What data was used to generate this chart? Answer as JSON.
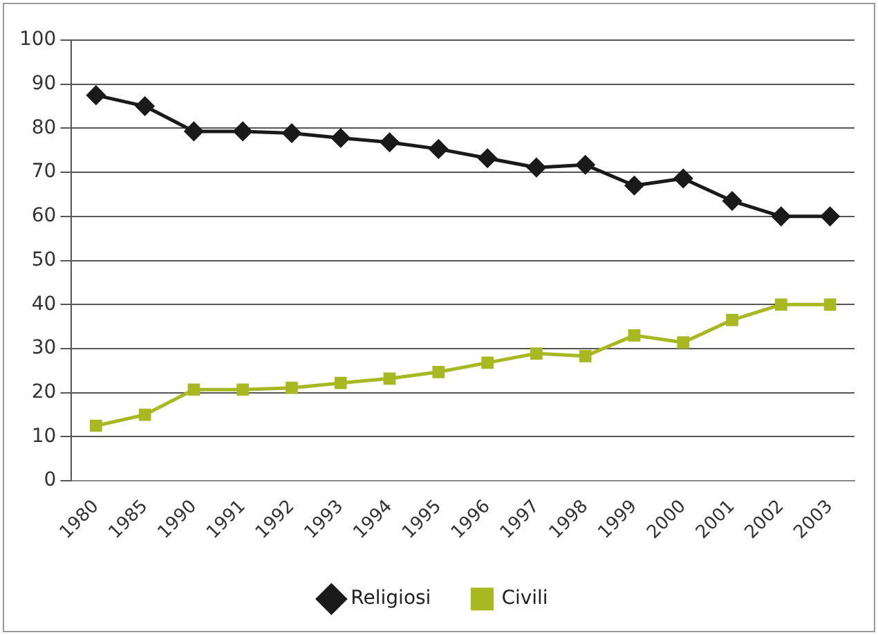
{
  "chart_data": {
    "type": "line",
    "categories": [
      "1980",
      "1985",
      "1990",
      "1991",
      "1992",
      "1993",
      "1994",
      "1995",
      "1996",
      "1997",
      "1998",
      "1999",
      "2000",
      "2001",
      "2002",
      "2003"
    ],
    "series": [
      {
        "name": "Religiosi",
        "color": "#1a1a1a",
        "marker": "diamond",
        "values": [
          87.5,
          85,
          79.3,
          79.3,
          78.9,
          77.8,
          76.8,
          75.3,
          73.2,
          71.1,
          71.7,
          67,
          68.6,
          63.5,
          60,
          60
        ]
      },
      {
        "name": "Civili",
        "color": "#a8b820",
        "marker": "square",
        "values": [
          12.5,
          15,
          20.7,
          20.7,
          21.1,
          22.2,
          23.2,
          24.7,
          26.8,
          28.9,
          28.3,
          33,
          31.4,
          36.5,
          40,
          40
        ]
      }
    ],
    "ylim": [
      0,
      100
    ],
    "yticks": [
      0,
      10,
      20,
      30,
      40,
      50,
      60,
      70,
      80,
      90,
      100
    ],
    "grid": "y",
    "legend": "bottom",
    "line_style": "solid"
  }
}
